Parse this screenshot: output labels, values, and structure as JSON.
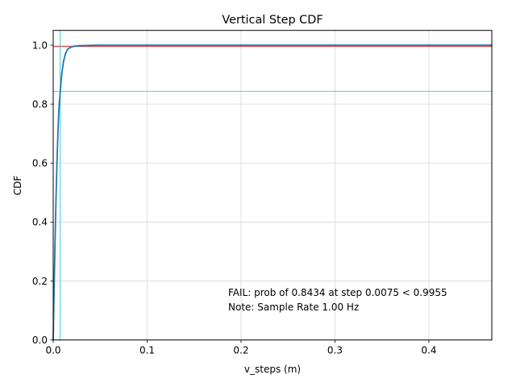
{
  "chart_data": {
    "type": "line",
    "title": "Vertical Step CDF",
    "xlabel": "v_steps (m)",
    "ylabel": "CDF",
    "xlim": [
      0,
      0.467
    ],
    "ylim": [
      0,
      1.05
    ],
    "x_ticks": [
      0.0,
      0.1,
      0.2,
      0.3,
      0.4
    ],
    "x_tick_labels": [
      "0.0",
      "0.1",
      "0.2",
      "0.3",
      "0.4"
    ],
    "y_ticks": [
      0.0,
      0.2,
      0.4,
      0.6,
      0.8,
      1.0
    ],
    "y_tick_labels": [
      "0.0",
      "0.2",
      "0.4",
      "0.6",
      "0.8",
      "1.0"
    ],
    "grid": true,
    "series": [
      {
        "color": "#1f77b4",
        "x": [
          0,
          0.001,
          0.002,
          0.003,
          0.004,
          0.005,
          0.006,
          0.0075,
          0.009,
          0.011,
          0.013,
          0.015,
          0.018,
          0.022,
          0.027,
          0.035,
          0.05,
          0.1,
          0.2,
          0.3,
          0.4,
          0.467
        ],
        "y": [
          0,
          0.18,
          0.34,
          0.48,
          0.6,
          0.7,
          0.78,
          0.8434,
          0.9,
          0.945,
          0.97,
          0.985,
          0.992,
          0.996,
          0.998,
          0.999,
          1.0,
          1.0,
          1.0,
          1.0,
          1.0,
          1.0
        ]
      }
    ],
    "reference_lines": {
      "threshold_y": 0.9955,
      "threshold_color": "#d62728",
      "measured_y": 0.8434,
      "measured_x": 0.0075,
      "measured_color": "#17becf"
    },
    "annotations": [
      {
        "text": "FAIL: prob of 0.8434 at step 0.0075 < 0.9955",
        "color": "#ff0000"
      },
      {
        "text": "Note: Sample Rate 1.00 Hz",
        "color": "#000000"
      }
    ]
  }
}
